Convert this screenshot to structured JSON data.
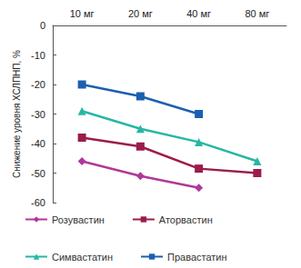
{
  "chart_data": {
    "type": "line",
    "y_label": "Снижение уровня ХСЛПНП, %",
    "categories": [
      "10 мг",
      "20 мг",
      "40 мг",
      "80 мг"
    ],
    "series": [
      {
        "name": "Розувастин",
        "color": "#b0389b",
        "marker": "diamond",
        "values": [
          -46,
          -51,
          -55,
          null
        ]
      },
      {
        "name": "Аторвастин",
        "color": "#9c1c4c",
        "marker": "square",
        "values": [
          -38,
          -41,
          -48.5,
          -50
        ]
      },
      {
        "name": "Симвастатин",
        "color": "#26b7a5",
        "marker": "triangle",
        "values": [
          -29,
          -35,
          -39.5,
          -46
        ]
      },
      {
        "name": "Правастатин",
        "color": "#1c5fb0",
        "marker": "square",
        "values": [
          -20,
          -24,
          -30,
          null
        ]
      }
    ],
    "ylim": [
      -60,
      0
    ],
    "yticks": [
      -60,
      -50,
      -40,
      -30,
      -20,
      -10,
      0
    ],
    "grid": false,
    "legend": "bottom"
  }
}
